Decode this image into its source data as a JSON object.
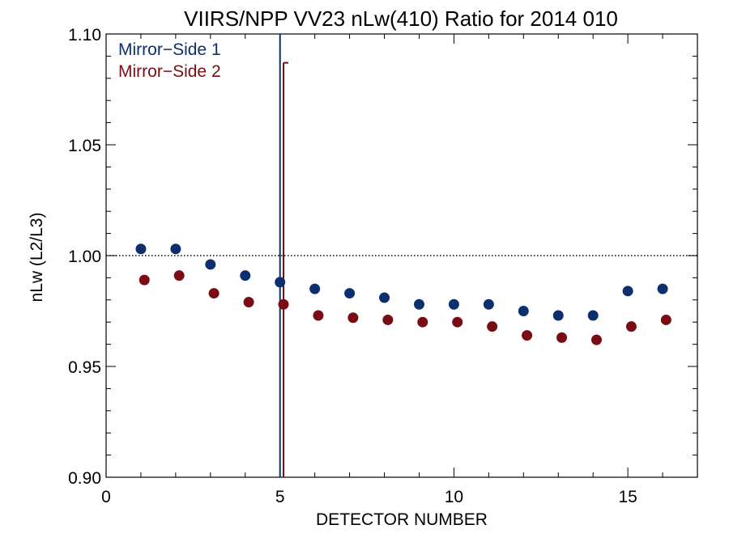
{
  "chart_data": {
    "type": "scatter",
    "title": "VIIRS/NPP VV23 nLw(410) Ratio for 2014 010",
    "xlabel": "DETECTOR NUMBER",
    "ylabel": "nLw (L2/L3)",
    "xlim": [
      0,
      17
    ],
    "ylim": [
      0.9,
      1.1
    ],
    "xticks": [
      "0",
      "5",
      "10",
      "15"
    ],
    "yticks": [
      "0.90",
      "0.95",
      "1.00",
      "1.05",
      "1.10"
    ],
    "reference_line": 1.0,
    "legend_position": "top-left",
    "series": [
      {
        "name": "Mirror−Side 1",
        "color": "#0d2f6e",
        "x": [
          1,
          2,
          3,
          4,
          5,
          6,
          7,
          8,
          9,
          10,
          11,
          12,
          13,
          14,
          15,
          16
        ],
        "y": [
          1.003,
          1.003,
          0.996,
          0.991,
          0.988,
          0.985,
          0.983,
          0.981,
          0.978,
          0.978,
          0.978,
          0.975,
          0.973,
          0.973,
          0.984,
          0.985
        ],
        "errorbar": {
          "x": 5.0,
          "low": 0.9,
          "high": 1.1
        }
      },
      {
        "name": "Mirror−Side 2",
        "color": "#7a0d14",
        "x": [
          1.1,
          2.1,
          3.1,
          4.1,
          5.1,
          6.1,
          7.1,
          8.1,
          9.1,
          10.1,
          11.1,
          12.1,
          13.1,
          14.1,
          15.1,
          16.1
        ],
        "y": [
          0.989,
          0.991,
          0.983,
          0.979,
          0.978,
          0.973,
          0.972,
          0.971,
          0.97,
          0.97,
          0.968,
          0.964,
          0.963,
          0.962,
          0.968,
          0.971
        ],
        "errorbar": {
          "x": 5.1,
          "low": 0.9,
          "high": 1.087
        }
      }
    ]
  }
}
